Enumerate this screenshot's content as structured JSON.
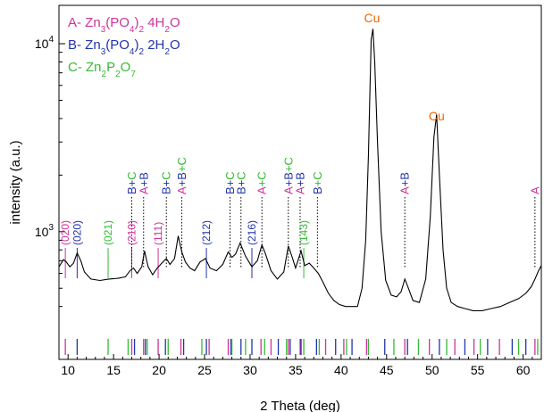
{
  "chart_data": {
    "type": "line",
    "title": "",
    "xlabel": "2 Theta (deg)",
    "ylabel": "intensity (a.u.)",
    "xlim": [
      9,
      62
    ],
    "ylim": [
      300,
      16000
    ],
    "yscale": "log",
    "grid": false,
    "x_ticks": [
      {
        "value": 10,
        "label": "10"
      },
      {
        "value": 15,
        "label": "15"
      },
      {
        "value": 20,
        "label": "20"
      },
      {
        "value": 25,
        "label": "25"
      },
      {
        "value": 30,
        "label": "30"
      },
      {
        "value": 35,
        "label": "35"
      },
      {
        "value": 40,
        "label": "40"
      },
      {
        "value": 45,
        "label": "45"
      },
      {
        "value": 50,
        "label": "50"
      },
      {
        "value": 55,
        "label": "55"
      },
      {
        "value": 60,
        "label": "60"
      }
    ],
    "y_ticks": [
      {
        "value": 1000,
        "base": "10",
        "exp": "3"
      },
      {
        "value": 10000,
        "base": "10",
        "exp": "4"
      }
    ],
    "colors": {
      "A": "#cc3399",
      "B": "#2233aa",
      "C": "#33bb33",
      "Cu": "#ee6600",
      "trace": "#000000"
    },
    "legend": [
      {
        "letter": "A",
        "sep": "-",
        "parts": [
          [
            "Zn",
            "n"
          ],
          [
            "3",
            "sub"
          ],
          [
            "(PO",
            "n"
          ],
          [
            "4",
            "sub"
          ],
          [
            ")",
            "n"
          ],
          [
            "2",
            "sub"
          ],
          [
            " 4H",
            "n"
          ],
          [
            "2",
            "sub"
          ],
          [
            "O",
            "n"
          ]
        ]
      },
      {
        "letter": "B",
        "sep": "-",
        "parts": [
          [
            "Zn",
            "n"
          ],
          [
            "3",
            "sub"
          ],
          [
            "(PO",
            "n"
          ],
          [
            "4",
            "sub"
          ],
          [
            ")",
            "n"
          ],
          [
            "2",
            "sub"
          ],
          [
            " 2H",
            "n"
          ],
          [
            "2",
            "sub"
          ],
          [
            "O",
            "n"
          ]
        ]
      },
      {
        "letter": "C",
        "sep": "-",
        "parts": [
          [
            "Zn",
            "n"
          ],
          [
            "2",
            "sub"
          ],
          [
            "P",
            "n"
          ],
          [
            "2",
            "sub"
          ],
          [
            "O",
            "n"
          ],
          [
            "7",
            "sub"
          ]
        ]
      }
    ],
    "series": [
      {
        "x": [
          9.0,
          9.5,
          9.8,
          10.2,
          10.6,
          11.0,
          11.4,
          11.8,
          12.5,
          13.5,
          14.5,
          15.5,
          16.3,
          16.8,
          17.2,
          17.6,
          18.1,
          18.4,
          18.8,
          19.3,
          19.8,
          20.3,
          20.8,
          21.2,
          21.7,
          22.1,
          22.5,
          22.9,
          23.4,
          23.9,
          24.5,
          25.1,
          25.6,
          26.3,
          27.0,
          27.6,
          28.0,
          28.4,
          28.9,
          29.5,
          30.2,
          30.8,
          31.3,
          31.7,
          32.3,
          33.0,
          33.7,
          34.2,
          34.6,
          35.0,
          35.6,
          36.0,
          36.5,
          37.0,
          37.5,
          38.0,
          38.6,
          39.2,
          39.8,
          40.5,
          41.2,
          41.8,
          42.3,
          42.7,
          43.0,
          43.3,
          43.5,
          43.7,
          44.0,
          44.4,
          44.9,
          45.5,
          46.1,
          46.6,
          47.0,
          47.4,
          47.9,
          48.6,
          49.3,
          49.8,
          50.2,
          50.5,
          50.8,
          51.2,
          51.6,
          52.1,
          52.8,
          53.6,
          54.5,
          55.5,
          56.5,
          57.5,
          58.5,
          59.5,
          60.3,
          60.9,
          61.3,
          61.7,
          62.0
        ],
        "y": [
          650,
          710,
          690,
          650,
          680,
          770,
          700,
          610,
          560,
          550,
          560,
          565,
          575,
          620,
          640,
          600,
          650,
          790,
          650,
          590,
          640,
          680,
          720,
          670,
          720,
          950,
          780,
          690,
          640,
          620,
          690,
          720,
          640,
          620,
          670,
          780,
          730,
          760,
          870,
          740,
          650,
          700,
          850,
          760,
          620,
          560,
          610,
          840,
          740,
          640,
          790,
          660,
          680,
          640,
          600,
          540,
          470,
          430,
          410,
          400,
          400,
          400,
          500,
          900,
          2500,
          10500,
          12000,
          8000,
          3000,
          1000,
          550,
          460,
          450,
          480,
          560,
          500,
          430,
          420,
          560,
          1200,
          3200,
          4200,
          2000,
          800,
          500,
          420,
          400,
          390,
          380,
          380,
          390,
          400,
          420,
          440,
          470,
          510,
          560,
          620,
          660
        ]
      }
    ],
    "cu_labels": [
      {
        "text": "Cu",
        "x": 43.4
      },
      {
        "text": "Cu",
        "x": 50.5
      }
    ],
    "phase_annotations": [
      {
        "x": 17.0,
        "parts": [
          [
            "B",
            "B"
          ],
          [
            "+",
            "B"
          ],
          [
            "C",
            "C"
          ]
        ]
      },
      {
        "x": 18.3,
        "parts": [
          [
            "A",
            "A"
          ],
          [
            "+",
            "B"
          ],
          [
            "B",
            "B"
          ]
        ]
      },
      {
        "x": 20.8,
        "parts": [
          [
            "B",
            "B"
          ],
          [
            "+",
            "B"
          ],
          [
            "C",
            "C"
          ]
        ]
      },
      {
        "x": 22.5,
        "parts": [
          [
            "A",
            "A"
          ],
          [
            "+",
            "B"
          ],
          [
            "B",
            "B"
          ],
          [
            "+",
            "C"
          ],
          [
            "C",
            "C"
          ]
        ]
      },
      {
        "x": 27.8,
        "parts": [
          [
            "B",
            "B"
          ],
          [
            "+",
            "B"
          ],
          [
            "C",
            "C"
          ]
        ]
      },
      {
        "x": 29.0,
        "parts": [
          [
            "B",
            "B"
          ],
          [
            "+",
            "B"
          ],
          [
            "C",
            "C"
          ]
        ]
      },
      {
        "x": 31.3,
        "parts": [
          [
            "A",
            "A"
          ],
          [
            "+",
            "C"
          ],
          [
            "C",
            "C"
          ]
        ]
      },
      {
        "x": 34.2,
        "parts": [
          [
            "A",
            "A"
          ],
          [
            "+",
            "B"
          ],
          [
            "B",
            "B"
          ],
          [
            "+",
            "C"
          ],
          [
            "C",
            "C"
          ]
        ]
      },
      {
        "x": 35.5,
        "parts": [
          [
            "A",
            "A"
          ],
          [
            "+",
            "B"
          ],
          [
            "B",
            "B"
          ]
        ]
      },
      {
        "x": 37.4,
        "parts": [
          [
            "B",
            "B"
          ],
          [
            "+",
            "C"
          ],
          [
            "C",
            "C"
          ]
        ]
      },
      {
        "x": 47.0,
        "parts": [
          [
            "A",
            "A"
          ],
          [
            "+",
            "B"
          ],
          [
            "B",
            "B"
          ]
        ]
      },
      {
        "x": 61.3,
        "parts": [
          [
            "A",
            "A"
          ]
        ]
      }
    ],
    "hkl_labels": [
      {
        "text": "(020)",
        "x": 9.7,
        "phase": "A"
      },
      {
        "text": "(020)",
        "x": 11.0,
        "phase": "B"
      },
      {
        "text": "(021)",
        "x": 14.4,
        "phase": "C"
      },
      {
        "text": "(210)",
        "x": 17.0,
        "phase": "A"
      },
      {
        "text": "(111)",
        "x": 19.9,
        "phase": "A"
      },
      {
        "text": "(212)",
        "x": 25.2,
        "phase": "B"
      },
      {
        "text": "(216)",
        "x": 30.2,
        "phase": "B"
      },
      {
        "text": "(143)",
        "x": 35.9,
        "phase": "C"
      }
    ],
    "reference_ticks": {
      "A": [
        9.7,
        17.0,
        18.3,
        19.9,
        22.4,
        25.5,
        27.6,
        31.2,
        32.3,
        34.2,
        35.5,
        38.3,
        40.3,
        42.8,
        47.0,
        49.7,
        52.5,
        54.6,
        57.4,
        61.3
      ],
      "B": [
        11.0,
        17.3,
        18.5,
        20.7,
        22.7,
        25.2,
        27.9,
        29.0,
        30.2,
        33.1,
        34.4,
        35.6,
        37.3,
        39.4,
        41.2,
        44.8,
        47.3,
        50.8,
        53.6,
        56.1,
        58.8,
        60.3
      ],
      "C": [
        14.4,
        16.6,
        18.7,
        21.0,
        24.7,
        28.0,
        29.5,
        31.6,
        34.0,
        35.9,
        37.6,
        40.6,
        43.0,
        45.8,
        48.5,
        51.6,
        55.3,
        59.5,
        61.6
      ]
    }
  }
}
